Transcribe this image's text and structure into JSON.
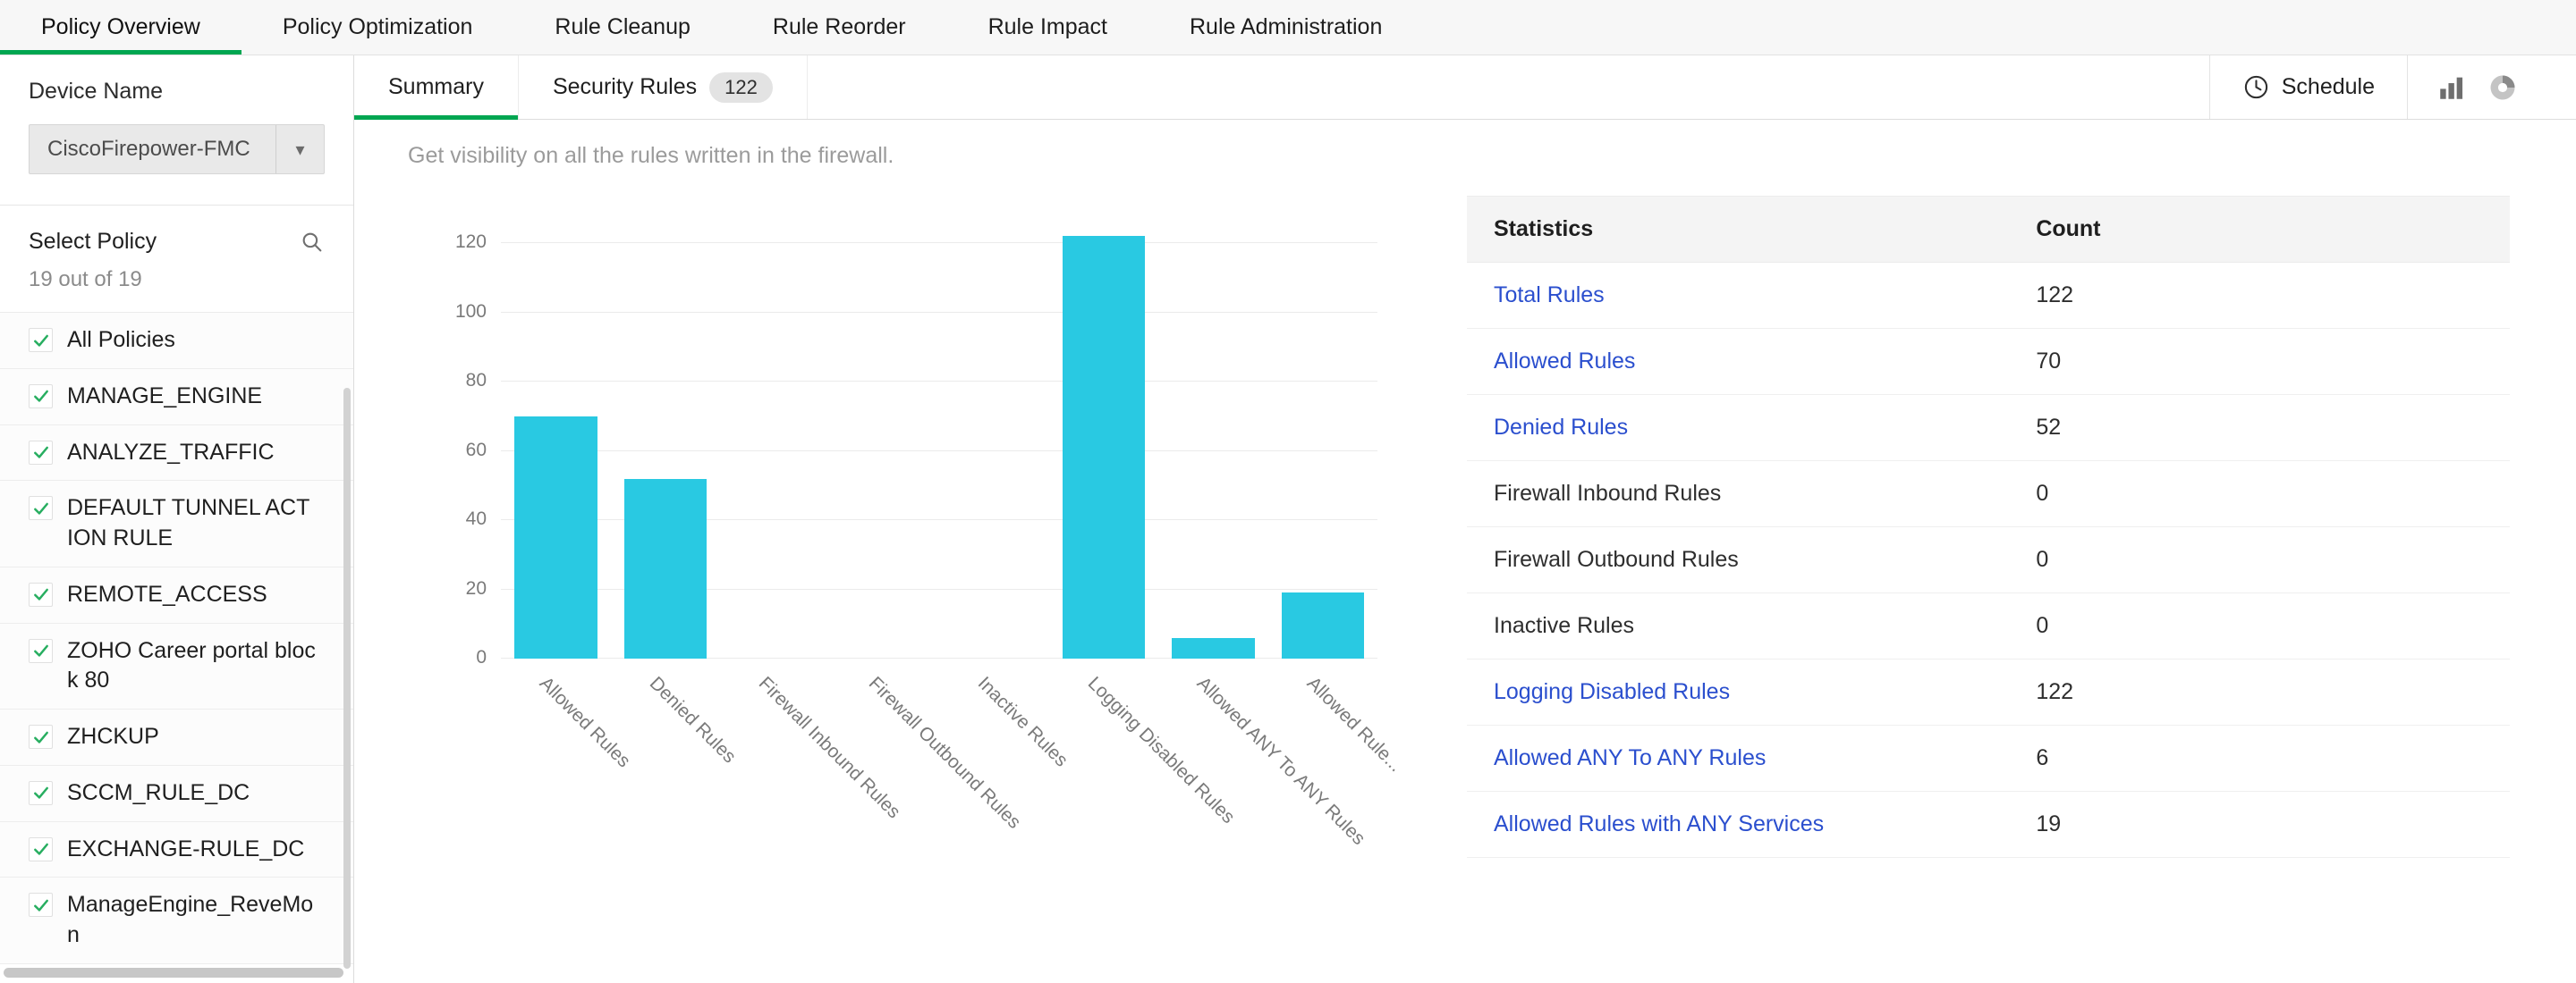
{
  "nav": {
    "tabs": [
      {
        "label": "Policy Overview",
        "active": true
      },
      {
        "label": "Policy Optimization",
        "active": false
      },
      {
        "label": "Rule Cleanup",
        "active": false
      },
      {
        "label": "Rule Reorder",
        "active": false
      },
      {
        "label": "Rule Impact",
        "active": false
      },
      {
        "label": "Rule Administration",
        "active": false
      }
    ]
  },
  "sidebar": {
    "device_label": "Device Name",
    "device_value": "CiscoFirepower-FMC",
    "select_policy_label": "Select Policy",
    "policy_count": "19 out of 19",
    "policies": [
      "All Policies",
      "MANAGE_ENGINE",
      "ANALYZE_TRAFFIC",
      "DEFAULT TUNNEL ACTION RULE",
      "REMOTE_ACCESS",
      "ZOHO Career portal block 80",
      "ZHCKUP",
      "SCCM_RULE_DC",
      "EXCHANGE-RULE_DC",
      "ManageEngine_ReveMon"
    ]
  },
  "main": {
    "tabs": [
      {
        "label": "Summary",
        "active": true
      },
      {
        "label": "Security Rules",
        "active": false,
        "badge": "122"
      }
    ],
    "schedule_label": "Schedule",
    "subtitle": "Get visibility on all the rules written in the firewall.",
    "stats_table": {
      "headers": [
        "Statistics",
        "Count"
      ],
      "rows": [
        {
          "label": "Total Rules",
          "count": "122",
          "link": true
        },
        {
          "label": "Allowed Rules",
          "count": "70",
          "link": true
        },
        {
          "label": "Denied Rules",
          "count": "52",
          "link": true
        },
        {
          "label": "Firewall Inbound Rules",
          "count": "0",
          "link": false
        },
        {
          "label": "Firewall Outbound Rules",
          "count": "0",
          "link": false
        },
        {
          "label": "Inactive Rules",
          "count": "0",
          "link": false
        },
        {
          "label": "Logging Disabled Rules",
          "count": "122",
          "link": true
        },
        {
          "label": "Allowed ANY To ANY Rules",
          "count": "6",
          "link": true
        },
        {
          "label": "Allowed Rules with ANY Services",
          "count": "19",
          "link": true
        }
      ]
    }
  },
  "chart_data": {
    "type": "bar",
    "categories": [
      "Allowed Rules",
      "Denied Rules",
      "Firewall Inbound Rules",
      "Firewall Outbound Rules",
      "Inactive Rules",
      "Logging Disabled Rules",
      "Allowed ANY To ANY Rules",
      "Allowed Rule..."
    ],
    "values": [
      70,
      52,
      0,
      0,
      0,
      122,
      6,
      19
    ],
    "yticks": [
      0,
      20,
      40,
      60,
      80,
      100,
      120
    ],
    "ylim": [
      0,
      124
    ],
    "title": "",
    "xlabel": "",
    "ylabel": "",
    "grid": true,
    "legend": "none",
    "bar_color": "#29c9e2"
  },
  "colors": {
    "accent_green": "#00a651",
    "bar_cyan": "#29c9e2",
    "link_blue": "#2b4fce"
  }
}
